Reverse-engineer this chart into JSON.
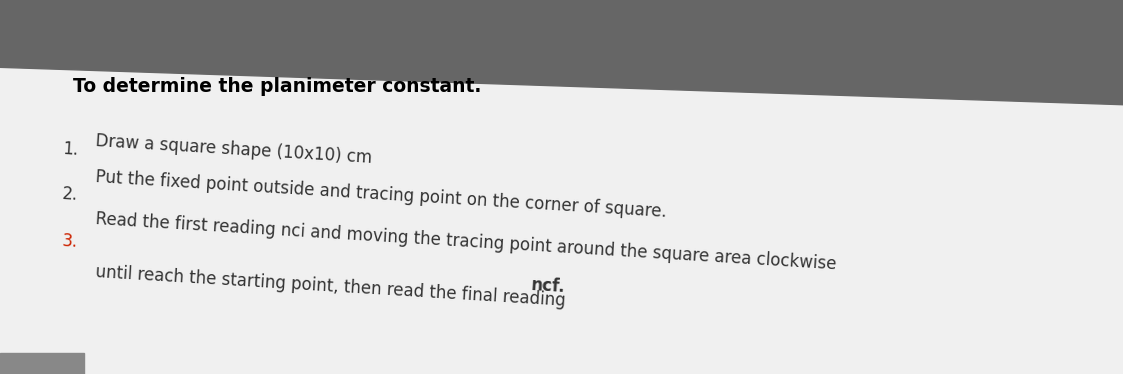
{
  "title": "To determine the planimeter constant.",
  "title_fontsize": 13.5,
  "title_color": "#000000",
  "header_bg_color": "#666666",
  "body_bg_color": "#f0f0f0",
  "item1_text": "Draw a square shape (10x10) cm",
  "item2_text": "Put the fixed point outside and tracing point on the corner of square.",
  "item3_line1": "Read the first reading nci and moving the tracing point around the square area clockwise",
  "item3_line2_normal": "until reach the starting point, then read the final reading ",
  "item3_line2_bold": "ncf.",
  "number1_color": "#333333",
  "number2_color": "#333333",
  "number3_color": "#cc2200",
  "text_color": "#333333",
  "font_size": 12.0,
  "bottom_bar_color": "#888888"
}
